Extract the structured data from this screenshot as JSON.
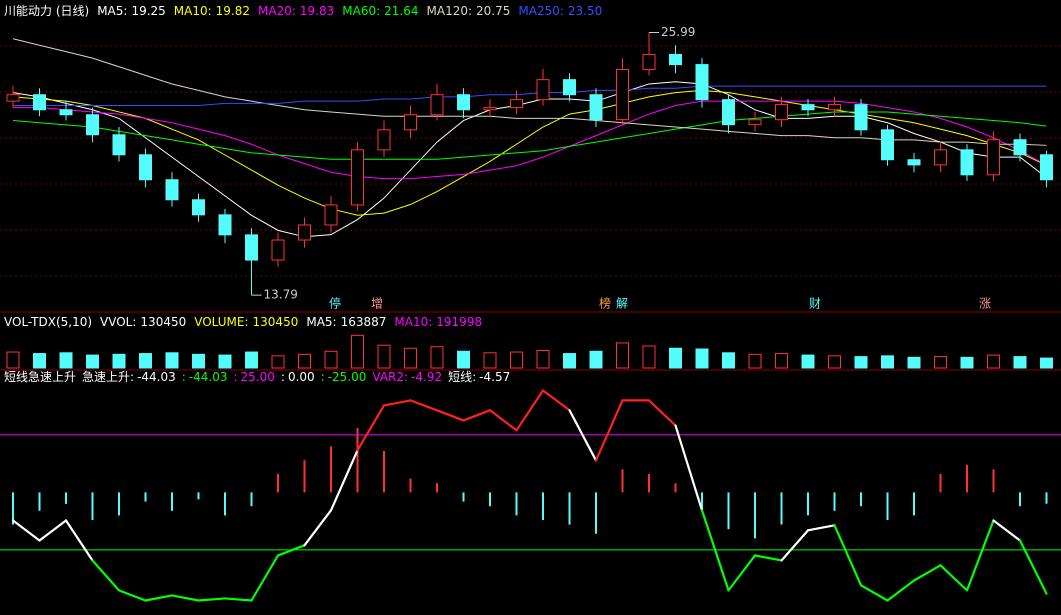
{
  "chart_data": [
    {
      "type": "candlestick",
      "title": "川能动力 (日线)",
      "open": [
        22.8,
        23.1,
        22.4,
        22.17,
        21.24,
        20.31,
        19.15,
        18.22,
        17.52,
        16.59,
        15.42,
        16.35,
        17.05,
        17.98,
        20.54,
        21.47,
        22.17,
        23.1,
        22.4,
        22.5,
        22.87,
        23.8,
        23.1,
        21.94,
        24.27,
        24.97,
        24.5,
        22.87,
        21.71,
        21.94,
        22.64,
        22.4,
        22.64,
        21.47,
        20.08,
        19.84,
        20.54,
        19.38,
        21.01,
        20.31
      ],
      "high": [
        23.5,
        23.4,
        22.8,
        22.5,
        21.6,
        20.6,
        19.5,
        18.5,
        17.8,
        16.9,
        16.7,
        17.4,
        18.4,
        20.9,
        21.9,
        22.6,
        23.6,
        23.4,
        22.9,
        23.3,
        24.3,
        24.1,
        23.4,
        24.8,
        25.99,
        25.4,
        24.8,
        23.1,
        22.3,
        23.0,
        22.9,
        23.0,
        22.9,
        21.7,
        20.4,
        20.9,
        20.8,
        21.4,
        21.3,
        20.5
      ],
      "low": [
        22.5,
        22.1,
        21.9,
        20.9,
        20.0,
        18.8,
        17.9,
        17.2,
        16.2,
        13.79,
        15.1,
        16.0,
        16.7,
        17.7,
        20.2,
        21.1,
        21.9,
        22.0,
        22.1,
        22.2,
        22.6,
        22.8,
        21.6,
        21.7,
        24.0,
        24.1,
        22.5,
        21.3,
        21.4,
        21.6,
        22.1,
        22.1,
        21.2,
        19.8,
        19.5,
        19.5,
        19.1,
        19.1,
        20.0,
        18.8
      ],
      "close": [
        23.1,
        22.4,
        22.17,
        21.24,
        20.31,
        19.15,
        18.22,
        17.52,
        16.59,
        15.42,
        16.35,
        17.05,
        17.98,
        20.54,
        21.47,
        22.17,
        23.1,
        22.4,
        22.5,
        22.87,
        23.8,
        23.1,
        21.94,
        24.27,
        24.97,
        24.5,
        22.87,
        21.71,
        21.94,
        22.64,
        22.4,
        22.64,
        21.47,
        20.08,
        19.84,
        20.54,
        19.38,
        21.01,
        20.31,
        19.15
      ],
      "ylim": [
        13.1,
        27.5
      ],
      "up_color": "#ff3232",
      "down_color": "#54fcfc",
      "grid": true,
      "series": [
        {
          "name": "MA5:",
          "value": 19.25,
          "color": "#ffffff",
          "values": [
            23.2,
            23.0,
            22.7,
            22.4,
            22.0,
            21.1,
            20.2,
            19.3,
            18.4,
            17.5,
            16.8,
            16.5,
            16.6,
            17.3,
            18.3,
            19.6,
            20.9,
            21.9,
            22.4,
            22.6,
            22.9,
            22.9,
            22.8,
            23.2,
            23.6,
            23.7,
            23.6,
            23.1,
            22.4,
            22.0,
            22.0,
            22.1,
            22.1,
            21.8,
            21.3,
            20.9,
            20.4,
            20.2,
            20.2,
            19.25
          ]
        },
        {
          "name": "MA10:",
          "value": 19.82,
          "color": "#ffff00",
          "values": [
            23.0,
            22.9,
            22.8,
            22.6,
            22.3,
            22.0,
            21.5,
            21.0,
            20.3,
            19.6,
            18.9,
            18.3,
            17.8,
            17.5,
            17.6,
            18.0,
            18.6,
            19.3,
            20.0,
            20.8,
            21.6,
            22.2,
            22.4,
            22.7,
            23.0,
            23.2,
            23.3,
            23.2,
            23.0,
            22.8,
            22.6,
            22.4,
            22.2,
            22.0,
            21.8,
            21.5,
            21.2,
            20.8,
            20.4,
            19.82
          ]
        },
        {
          "name": "MA20:",
          "value": 19.83,
          "color": "#ff00ff",
          "values": [
            22.5,
            22.5,
            22.4,
            22.3,
            22.2,
            22.0,
            21.8,
            21.5,
            21.2,
            20.8,
            20.3,
            19.9,
            19.5,
            19.3,
            19.2,
            19.2,
            19.3,
            19.4,
            19.6,
            19.8,
            20.2,
            20.7,
            21.2,
            21.7,
            22.2,
            22.6,
            22.8,
            22.8,
            22.8,
            22.8,
            22.8,
            22.8,
            22.7,
            22.5,
            22.3,
            22.0,
            21.6,
            21.1,
            20.5,
            19.83
          ]
        },
        {
          "name": "MA60:",
          "value": 21.64,
          "color": "#00ff00",
          "values": [
            21.9,
            21.8,
            21.7,
            21.6,
            21.4,
            21.2,
            21.0,
            20.8,
            20.6,
            20.4,
            20.3,
            20.2,
            20.1,
            20.1,
            20.1,
            20.1,
            20.1,
            20.2,
            20.3,
            20.4,
            20.5,
            20.7,
            20.9,
            21.1,
            21.3,
            21.5,
            21.7,
            21.9,
            22.0,
            22.1,
            22.2,
            22.3,
            22.3,
            22.3,
            22.2,
            22.1,
            22.0,
            21.9,
            21.8,
            21.64
          ]
        },
        {
          "name": "MA120:",
          "value": 20.75,
          "color": "#d8d8c0",
          "values": [
            25.7,
            25.4,
            25.1,
            24.8,
            24.4,
            24.0,
            23.6,
            23.3,
            23.0,
            22.8,
            22.6,
            22.4,
            22.3,
            22.2,
            22.1,
            22.1,
            22.1,
            22.1,
            22.1,
            22.0,
            22.0,
            22.0,
            21.9,
            21.8,
            21.7,
            21.6,
            21.5,
            21.4,
            21.3,
            21.2,
            21.2,
            21.1,
            21.1,
            21.0,
            21.0,
            20.9,
            20.9,
            20.8,
            20.8,
            20.75
          ]
        },
        {
          "name": "MA250:",
          "value": 23.5,
          "color": "#3050ff",
          "values": [
            22.6,
            22.6,
            22.6,
            22.6,
            22.6,
            22.6,
            22.6,
            22.6,
            22.7,
            22.7,
            22.7,
            22.8,
            22.8,
            22.8,
            22.9,
            22.9,
            23.0,
            23.0,
            23.1,
            23.1,
            23.2,
            23.2,
            23.3,
            23.3,
            23.4,
            23.4,
            23.5,
            23.5,
            23.5,
            23.5,
            23.5,
            23.5,
            23.5,
            23.5,
            23.5,
            23.5,
            23.5,
            23.5,
            23.5,
            23.5
          ],
          "value_label": "23.50"
        }
      ],
      "markers": [
        {
          "label": "停",
          "color": "#54fcfc"
        },
        {
          "label": "增",
          "color": "#ff9090"
        },
        {
          "label": "榜",
          "color": "#ffa040"
        },
        {
          "label": "解",
          "color": "#54fcfc"
        },
        {
          "label": "财",
          "color": "#54fcfc"
        },
        {
          "label": "涨",
          "color": "#ff9090"
        }
      ]
    },
    {
      "type": "bar",
      "title": "VOL-TDX(5,10)",
      "values": [
        210000,
        190000,
        200000,
        170000,
        180000,
        190000,
        200000,
        180000,
        170000,
        210000,
        160000,
        180000,
        220000,
        430000,
        300000,
        260000,
        280000,
        220000,
        200000,
        210000,
        230000,
        190000,
        220000,
        330000,
        290000,
        260000,
        250000,
        200000,
        180000,
        190000,
        170000,
        160000,
        150000,
        160000,
        140000,
        150000,
        140000,
        170000,
        150000,
        130450
      ],
      "ylim": [
        0,
        500000
      ],
      "legend": [
        {
          "name": "VVOL:",
          "value": 130450,
          "color": "#ffffff"
        },
        {
          "name": "VOLUME:",
          "value": 130450,
          "color": "#ffff00"
        },
        {
          "name": "MA5:",
          "value": 163887,
          "color": "#ffffff"
        },
        {
          "name": "MA10:",
          "value": 191998,
          "color": "#ff00ff"
        }
      ]
    },
    {
      "type": "line",
      "title": "短线急速上升",
      "values": [
        -12.2,
        -20.9,
        -12.2,
        -29.6,
        -42.6,
        -47.0,
        -44.8,
        -47.0,
        -46.1,
        -47.0,
        -27.4,
        -23.0,
        -7.8,
        18.3,
        37.8,
        40.0,
        35.7,
        31.3,
        35.7,
        27.0,
        44.3,
        35.7,
        13.9,
        40.0,
        40.0,
        29.1,
        -7.8,
        -42.6,
        -27.4,
        -29.6,
        -16.5,
        -14.3,
        -40.4,
        -47.0,
        -38.3,
        -31.7,
        -42.6,
        -12.2,
        -20.9,
        -44.03
      ],
      "hist": [
        -14,
        -8,
        -5,
        -12,
        -10,
        -4,
        -8,
        -3,
        -10,
        -6,
        8,
        14,
        20,
        28,
        18,
        6,
        4,
        -4,
        -6,
        -10,
        -12,
        -14,
        -18,
        10,
        8,
        4,
        -8,
        -16,
        -20,
        -14,
        -10,
        -8,
        -6,
        -12,
        -10,
        8,
        12,
        10,
        -6,
        -4.92
      ],
      "ylim": [
        -52,
        48
      ],
      "up_color": "#ff3232",
      "down_color": "#54fcfc",
      "line_colors": {
        "high": "#ff2020",
        "mid": "#ffffff",
        "low": "#00ff00"
      },
      "legend": [
        {
          "name": "急速上升:",
          "value": -44.03,
          "color": "#ffffff"
        },
        {
          "name": ":",
          "value": -44.03,
          "color": "#00ff00"
        }
      ],
      "levels": [
        {
          "name": ":",
          "value": 25,
          "label": "25.00",
          "color": "#ff00ff",
          "show_line": true
        },
        {
          "name": ":",
          "value": 0,
          "label": "0.00",
          "color": "#ffffff",
          "show_line": false
        },
        {
          "name": ":",
          "value": -25,
          "label": "-25.00",
          "color": "#00ff00",
          "show_line": true
        }
      ],
      "legend2": [
        {
          "name": "VAR2:",
          "value": -4.92,
          "color": "#ff00ff"
        },
        {
          "name": "短线:",
          "value": -4.57,
          "color": "#ffffff"
        }
      ]
    }
  ]
}
